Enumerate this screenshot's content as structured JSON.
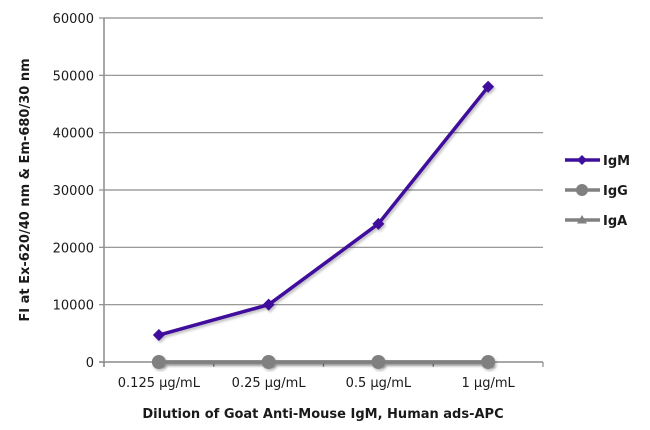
{
  "chart_data": {
    "type": "line",
    "title": "",
    "xlabel": "Dilution of Goat Anti-Mouse IgM, Human ads-APC",
    "ylabel": "FI at Ex-620/40 nm & Em-680/30 nm",
    "categories": [
      "0.125 µg/mL",
      "0.25 µg/mL",
      "0.5 µg/mL",
      "1 µg/mL"
    ],
    "ylim": [
      0,
      60000
    ],
    "yticks": [
      0,
      10000,
      20000,
      30000,
      40000,
      50000,
      60000
    ],
    "grid": true,
    "legend_position": "right",
    "series": [
      {
        "name": "IgM",
        "color": "#3f0f9c",
        "marker": "diamond",
        "values": [
          4700,
          10000,
          24100,
          48000
        ]
      },
      {
        "name": "IgG",
        "color": "#808080",
        "marker": "circle",
        "values": [
          0,
          0,
          0,
          0
        ]
      },
      {
        "name": "IgA",
        "color": "#808080",
        "marker": "triangle",
        "values": [
          0,
          0,
          0,
          0
        ]
      }
    ]
  }
}
